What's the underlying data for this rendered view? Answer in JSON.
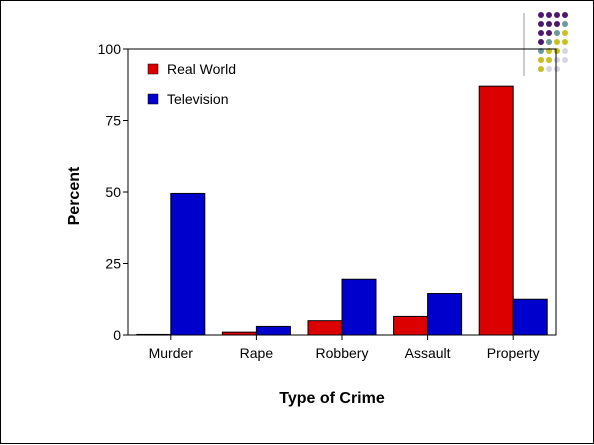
{
  "decoration": {
    "dot_colors": [
      "#4b1a6e",
      "#6b9a9a",
      "#c8c020",
      "#d8d4e6"
    ]
  },
  "chart_data": {
    "type": "bar",
    "categories": [
      "Murder",
      "Rape",
      "Robbery",
      "Assault",
      "Property"
    ],
    "series": [
      {
        "name": "Real World",
        "color": "#dd0000",
        "values": [
          0.2,
          1,
          5,
          6.5,
          87
        ]
      },
      {
        "name": "Television",
        "color": "#0000cc",
        "values": [
          49.5,
          3,
          19.5,
          14.5,
          12.5
        ]
      }
    ],
    "yticks": [
      0,
      25,
      50,
      75,
      100
    ],
    "ylim": [
      0,
      100
    ],
    "xlabel": "Type of Crime",
    "ylabel": "Percent",
    "legend_position": "top-left",
    "grid": false
  }
}
